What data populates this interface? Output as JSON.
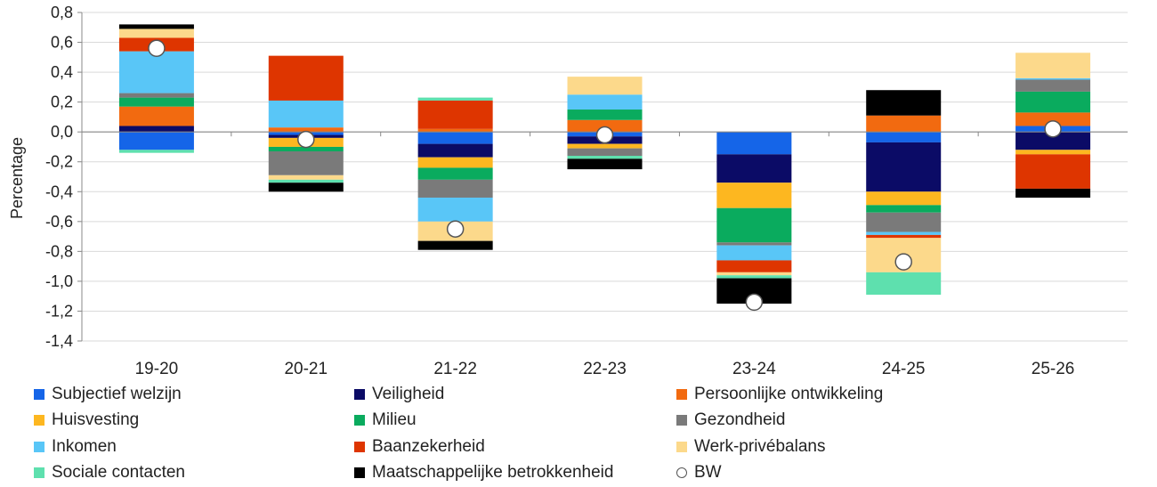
{
  "chart_data": {
    "type": "bar",
    "stacked": true,
    "ylabel": "Percentage",
    "ylim": [
      -1.4,
      0.8
    ],
    "yticks": [
      "0,8",
      "0,6",
      "0,4",
      "0,2",
      "0,0",
      "-0,2",
      "-0,4",
      "-0,6",
      "-0,8",
      "-1,0",
      "-1,2",
      "-1,4"
    ],
    "categories": [
      "19-20",
      "20-21",
      "21-22",
      "22-23",
      "23-24",
      "24-25",
      "25-26"
    ],
    "grid": "horizontal",
    "legend_position": "bottom",
    "series": [
      {
        "name": "Subjectief welzijn",
        "color": "#1565e8",
        "values": [
          -0.12,
          -0.02,
          -0.08,
          -0.03,
          -0.15,
          -0.07,
          0.04
        ]
      },
      {
        "name": "Veiligheid",
        "color": "#0b0b66",
        "values": [
          0.04,
          -0.02,
          -0.09,
          -0.05,
          -0.19,
          -0.33,
          -0.12
        ]
      },
      {
        "name": "Persoonlijke ontwikkeling",
        "color": "#f26a10",
        "values": [
          0.13,
          0.03,
          0.02,
          0.08,
          0.0,
          0.11,
          0.09
        ]
      },
      {
        "name": "Huisvesting",
        "color": "#fdb720",
        "values": [
          0.0,
          -0.06,
          -0.07,
          -0.03,
          -0.17,
          -0.09,
          -0.03
        ]
      },
      {
        "name": "Milieu",
        "color": "#0aab5e",
        "values": [
          0.06,
          -0.03,
          -0.08,
          0.07,
          -0.23,
          -0.05,
          0.14
        ]
      },
      {
        "name": "Gezondheid",
        "color": "#7a7a7a",
        "values": [
          0.03,
          -0.16,
          -0.12,
          -0.05,
          -0.02,
          -0.13,
          0.08
        ]
      },
      {
        "name": "Inkomen",
        "color": "#59c6f7",
        "values": [
          0.28,
          0.18,
          -0.16,
          0.1,
          -0.1,
          -0.02,
          0.01
        ]
      },
      {
        "name": "Baanzekerheid",
        "color": "#de3500",
        "values": [
          0.09,
          0.3,
          0.19,
          0.0,
          -0.08,
          -0.02,
          -0.23
        ]
      },
      {
        "name": "Werk-privébalans",
        "color": "#fcd98b",
        "values": [
          0.06,
          -0.03,
          -0.13,
          0.12,
          -0.02,
          -0.23,
          0.17
        ]
      },
      {
        "name": "Sociale contacten",
        "color": "#5ee0ae",
        "values": [
          -0.02,
          -0.02,
          0.02,
          -0.02,
          -0.02,
          -0.15,
          0.0
        ]
      },
      {
        "name": "Maatschappelijke betrokkenheid",
        "color": "#000000",
        "values": [
          0.03,
          -0.06,
          -0.06,
          -0.07,
          -0.17,
          0.17,
          -0.06
        ]
      }
    ],
    "markers": {
      "name": "BW",
      "values": [
        0.56,
        -0.05,
        -0.65,
        -0.02,
        -1.14,
        -0.87,
        0.02
      ]
    }
  },
  "legend": [
    {
      "label": "Subjectief welzijn",
      "color": "#1565e8",
      "kind": "square"
    },
    {
      "label": "Veiligheid",
      "color": "#0b0b66",
      "kind": "square"
    },
    {
      "label": "Persoonlijke ontwikkeling",
      "color": "#f26a10",
      "kind": "square"
    },
    {
      "label": "Huisvesting",
      "color": "#fdb720",
      "kind": "square"
    },
    {
      "label": "Milieu",
      "color": "#0aab5e",
      "kind": "square"
    },
    {
      "label": "Gezondheid",
      "color": "#7a7a7a",
      "kind": "square"
    },
    {
      "label": "Inkomen",
      "color": "#59c6f7",
      "kind": "square"
    },
    {
      "label": "Baanzekerheid",
      "color": "#de3500",
      "kind": "square"
    },
    {
      "label": "Werk-privébalans",
      "color": "#fcd98b",
      "kind": "square"
    },
    {
      "label": "Sociale contacten",
      "color": "#5ee0ae",
      "kind": "square"
    },
    {
      "label": "Maatschappelijke betrokkenheid",
      "color": "#000000",
      "kind": "square"
    },
    {
      "label": "BW",
      "color": "#ffffff",
      "kind": "circle"
    }
  ]
}
